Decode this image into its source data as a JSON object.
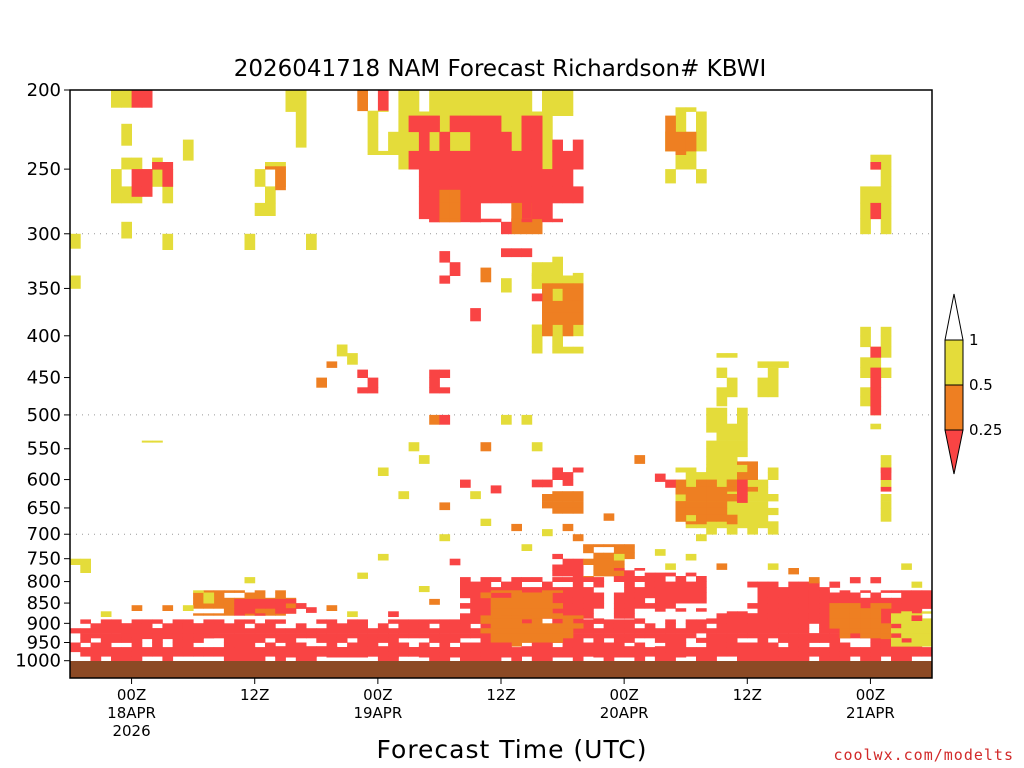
{
  "chart_data": {
    "type": "heatmap",
    "title": "2026041718 NAM Forecast Richardson# KBWI",
    "xlabel": "Forecast Time (UTC)",
    "credit": "coolwx.com/modelts",
    "y_axis": {
      "scale": "pressure (log)",
      "ticks": [
        "200",
        "250",
        "300",
        "350",
        "400",
        "450",
        "500",
        "550",
        "600",
        "650",
        "700",
        "750",
        "800",
        "850",
        "900",
        "950",
        "1000"
      ],
      "gridlines": [
        "300",
        "500",
        "700"
      ]
    },
    "x_axis": {
      "range": [
        "2026-04-17 18Z",
        "2026-04-21 06Z"
      ],
      "ticks": [
        {
          "time": "2026-04-18 00Z",
          "lines": [
            "00Z",
            "18APR",
            "2026"
          ]
        },
        {
          "time": "2026-04-18 12Z",
          "lines": [
            "12Z"
          ]
        },
        {
          "time": "2026-04-19 00Z",
          "lines": [
            "00Z",
            "19APR"
          ]
        },
        {
          "time": "2026-04-19 12Z",
          "lines": [
            "12Z"
          ]
        },
        {
          "time": "2026-04-20 00Z",
          "lines": [
            "00Z",
            "20APR"
          ]
        },
        {
          "time": "2026-04-20 12Z",
          "lines": [
            "12Z"
          ]
        },
        {
          "time": "2026-04-21 00Z",
          "lines": [
            "00Z",
            "21APR"
          ]
        }
      ]
    },
    "legend": {
      "placement": "right",
      "labels": [
        "1",
        "0.5",
        "0.25"
      ],
      "bins": [
        {
          "range": "0.5-1",
          "color": "#e4dc3a"
        },
        {
          "range": "0.25-0.5",
          "color": "#ee7f22"
        },
        {
          "range": "<0.25",
          "color": "#f94444"
        }
      ]
    },
    "colors": {
      "low": "#f94444",
      "mid": "#ee7f22",
      "high": "#e4dc3a",
      "ground": "#8c4a25"
    },
    "patches": [
      {
        "t0": 4,
        "t1": 8,
        "p0": 200,
        "p1": 210,
        "c": "high"
      },
      {
        "t0": 6,
        "t1": 8,
        "p0": 200,
        "p1": 210,
        "c": "low"
      },
      {
        "t0": 4,
        "t1": 10,
        "p0": 242,
        "p1": 275,
        "c": "high"
      },
      {
        "t0": 6,
        "t1": 10,
        "p0": 245,
        "p1": 270,
        "c": "low"
      },
      {
        "t0": 21,
        "t1": 23,
        "p0": 200,
        "p1": 235,
        "c": "high"
      },
      {
        "t0": 18,
        "t1": 21,
        "p0": 245,
        "p1": 285,
        "c": "high"
      },
      {
        "t0": 19,
        "t1": 21,
        "p0": 248,
        "p1": 265,
        "c": "mid"
      },
      {
        "t0": 28,
        "t1": 30,
        "p0": 200,
        "p1": 212,
        "c": "mid"
      },
      {
        "t0": 30,
        "t1": 31,
        "p0": 200,
        "p1": 212,
        "c": "low"
      },
      {
        "t0": 29,
        "t1": 32,
        "p0": 212,
        "p1": 240,
        "c": "high"
      },
      {
        "t0": 32,
        "t1": 47,
        "p0": 200,
        "p1": 250,
        "c": "high"
      },
      {
        "t0": 33,
        "t1": 46,
        "p0": 215,
        "p1": 290,
        "c": "low"
      },
      {
        "t0": 35,
        "t1": 40,
        "p0": 250,
        "p1": 290,
        "c": "low"
      },
      {
        "t0": 36,
        "t1": 38,
        "p0": 265,
        "p1": 290,
        "c": "mid"
      },
      {
        "t0": 43,
        "t1": 46,
        "p0": 275,
        "p1": 300,
        "c": "mid"
      },
      {
        "t0": 42,
        "t1": 45,
        "p0": 290,
        "p1": 320,
        "c": "low"
      },
      {
        "t0": 36,
        "t1": 38,
        "p0": 315,
        "p1": 345,
        "c": "low"
      },
      {
        "t0": 46,
        "t1": 49,
        "p0": 200,
        "p1": 215,
        "c": "high"
      },
      {
        "t0": 47,
        "t1": 49,
        "p0": 200,
        "p1": 210,
        "c": "mid"
      },
      {
        "t0": 44,
        "t1": 50,
        "p0": 230,
        "p1": 290,
        "c": "low"
      },
      {
        "t0": 45,
        "t1": 48,
        "p0": 320,
        "p1": 350,
        "c": "high"
      },
      {
        "t0": 45,
        "t1": 50,
        "p0": 335,
        "p1": 420,
        "c": "high"
      },
      {
        "t0": 46,
        "t1": 50,
        "p0": 345,
        "p1": 400,
        "c": "mid"
      },
      {
        "t0": 45,
        "t1": 46,
        "p0": 355,
        "p1": 380,
        "c": "low"
      },
      {
        "t0": 58,
        "t1": 62,
        "p0": 210,
        "p1": 260,
        "c": "high"
      },
      {
        "t0": 58,
        "t1": 61,
        "p0": 215,
        "p1": 240,
        "c": "mid"
      },
      {
        "t0": 77,
        "t1": 80,
        "p0": 240,
        "p1": 300,
        "c": "high"
      },
      {
        "t0": 78,
        "t1": 79,
        "p0": 245,
        "p1": 290,
        "c": "low"
      },
      {
        "t0": 77,
        "t1": 80,
        "p0": 390,
        "p1": 520,
        "c": "high"
      },
      {
        "t0": 78,
        "t1": 79,
        "p0": 400,
        "p1": 500,
        "c": "low"
      },
      {
        "t0": 79,
        "t1": 80,
        "p0": 560,
        "p1": 680,
        "c": "high"
      },
      {
        "t0": 79,
        "t1": 80,
        "p0": 580,
        "p1": 620,
        "c": "low"
      },
      {
        "t0": 63,
        "t1": 65,
        "p0": 420,
        "p1": 490,
        "c": "high"
      },
      {
        "t0": 62,
        "t1": 66,
        "p0": 490,
        "p1": 600,
        "c": "high"
      },
      {
        "t0": 59,
        "t1": 69,
        "p0": 580,
        "p1": 700,
        "c": "high"
      },
      {
        "t0": 59,
        "t1": 65,
        "p0": 600,
        "p1": 680,
        "c": "mid"
      },
      {
        "t0": 64,
        "t1": 67,
        "p0": 570,
        "p1": 620,
        "c": "mid"
      },
      {
        "t0": 65,
        "t1": 66,
        "p0": 600,
        "p1": 640,
        "c": "low"
      },
      {
        "t0": 67,
        "t1": 70,
        "p0": 430,
        "p1": 480,
        "c": "high"
      },
      {
        "t0": 24,
        "t1": 26,
        "p0": 430,
        "p1": 480,
        "c": "mid"
      },
      {
        "t0": 28,
        "t1": 30,
        "p0": 440,
        "p1": 470,
        "c": "low"
      },
      {
        "t0": 35,
        "t1": 37,
        "p0": 440,
        "p1": 470,
        "c": "low"
      },
      {
        "t0": 45,
        "t1": 47,
        "p0": 600,
        "p1": 620,
        "c": "low"
      },
      {
        "t0": 46,
        "t1": 50,
        "p0": 620,
        "p1": 660,
        "c": "mid"
      },
      {
        "t0": 47,
        "t1": 50,
        "p0": 580,
        "p1": 610,
        "c": "low"
      },
      {
        "t0": 47,
        "t1": 50,
        "p0": 740,
        "p1": 800,
        "c": "low"
      },
      {
        "t0": 50,
        "t1": 55,
        "p0": 720,
        "p1": 800,
        "c": "mid"
      },
      {
        "t0": 53,
        "t1": 56,
        "p0": 770,
        "p1": 900,
        "c": "low"
      },
      {
        "t0": 56,
        "t1": 62,
        "p0": 780,
        "p1": 870,
        "c": "low"
      },
      {
        "t0": 38,
        "t1": 52,
        "p0": 790,
        "p1": 900,
        "c": "low"
      },
      {
        "t0": 40,
        "t1": 48,
        "p0": 820,
        "p1": 900,
        "c": "mid"
      },
      {
        "t0": 12,
        "t1": 22,
        "p0": 820,
        "p1": 880,
        "c": "mid"
      },
      {
        "t0": 12,
        "t1": 14,
        "p0": 820,
        "p1": 850,
        "c": "high"
      },
      {
        "t0": 16,
        "t1": 22,
        "p0": 840,
        "p1": 880,
        "c": "low"
      },
      {
        "t0": 0,
        "t1": 62,
        "p0": 890,
        "p1": 950,
        "c": "low"
      },
      {
        "t0": 5,
        "t1": 14,
        "p0": 900,
        "p1": 940,
        "c": "low"
      },
      {
        "t0": 40,
        "t1": 50,
        "p0": 880,
        "p1": 960,
        "c": "mid"
      },
      {
        "t0": 0,
        "t1": 84,
        "p0": 950,
        "p1": 1000,
        "c": "low"
      },
      {
        "t0": 20,
        "t1": 60,
        "p0": 960,
        "p1": 990,
        "c": "low"
      },
      {
        "t0": 62,
        "t1": 72,
        "p0": 870,
        "p1": 960,
        "c": "low"
      },
      {
        "t0": 66,
        "t1": 74,
        "p0": 800,
        "p1": 900,
        "c": "low"
      },
      {
        "t0": 72,
        "t1": 84,
        "p0": 820,
        "p1": 950,
        "c": "low"
      },
      {
        "t0": 74,
        "t1": 80,
        "p0": 850,
        "p1": 940,
        "c": "mid"
      },
      {
        "t0": 80,
        "t1": 84,
        "p0": 870,
        "p1": 960,
        "c": "high"
      },
      {
        "t0": 0,
        "t1": 1,
        "p0": 295,
        "p1": 350,
        "c": "high"
      },
      {
        "t0": 0,
        "t1": 1,
        "p0": 295,
        "p1": 310,
        "c": "mid"
      },
      {
        "t0": 0,
        "t1": 2,
        "p0": 750,
        "p1": 780,
        "c": "high"
      },
      {
        "t0": 7,
        "t1": 9,
        "p0": 520,
        "p1": 540,
        "c": "high"
      }
    ],
    "speckles": [
      {
        "t": 3,
        "p": 870,
        "c": "high"
      },
      {
        "t": 6,
        "p": 855,
        "c": "mid"
      },
      {
        "t": 9,
        "p": 855,
        "c": "mid"
      },
      {
        "t": 11,
        "p": 855,
        "c": "high"
      },
      {
        "t": 17,
        "p": 790,
        "c": "high"
      },
      {
        "t": 23,
        "p": 860,
        "c": "low"
      },
      {
        "t": 25,
        "p": 855,
        "c": "mid"
      },
      {
        "t": 27,
        "p": 870,
        "c": "high"
      },
      {
        "t": 28,
        "p": 780,
        "c": "high"
      },
      {
        "t": 31,
        "p": 870,
        "c": "low"
      },
      {
        "t": 34,
        "p": 810,
        "c": "high"
      },
      {
        "t": 35,
        "p": 840,
        "c": "mid"
      },
      {
        "t": 33,
        "p": 540,
        "c": "high"
      },
      {
        "t": 34,
        "p": 560,
        "c": "high"
      },
      {
        "t": 35,
        "p": 500,
        "c": "mid"
      },
      {
        "t": 36,
        "p": 700,
        "c": "high"
      },
      {
        "t": 36,
        "p": 640,
        "c": "mid"
      },
      {
        "t": 37,
        "p": 750,
        "c": "low"
      },
      {
        "t": 38,
        "p": 600,
        "c": "low"
      },
      {
        "t": 39,
        "p": 620,
        "c": "high"
      },
      {
        "t": 40,
        "p": 670,
        "c": "high"
      },
      {
        "t": 41,
        "p": 610,
        "c": "low"
      },
      {
        "t": 42,
        "p": 500,
        "c": "high"
      },
      {
        "t": 43,
        "p": 680,
        "c": "mid"
      },
      {
        "t": 44,
        "p": 720,
        "c": "high"
      },
      {
        "t": 44,
        "p": 500,
        "c": "high"
      },
      {
        "t": 45,
        "p": 540,
        "c": "high"
      },
      {
        "t": 46,
        "p": 690,
        "c": "high"
      },
      {
        "t": 48,
        "p": 680,
        "c": "mid"
      },
      {
        "t": 49,
        "p": 700,
        "c": "mid"
      },
      {
        "t": 52,
        "p": 660,
        "c": "mid"
      },
      {
        "t": 53,
        "p": 740,
        "c": "high"
      },
      {
        "t": 55,
        "p": 560,
        "c": "mid"
      },
      {
        "t": 57,
        "p": 590,
        "c": "low"
      },
      {
        "t": 58,
        "p": 760,
        "c": "high"
      },
      {
        "t": 60,
        "p": 740,
        "c": "high"
      },
      {
        "t": 61,
        "p": 700,
        "c": "high"
      },
      {
        "t": 63,
        "p": 760,
        "c": "mid"
      },
      {
        "t": 68,
        "p": 760,
        "c": "high"
      },
      {
        "t": 70,
        "p": 770,
        "c": "mid"
      },
      {
        "t": 72,
        "p": 790,
        "c": "mid"
      },
      {
        "t": 74,
        "p": 800,
        "c": "low"
      },
      {
        "t": 76,
        "p": 790,
        "c": "low"
      },
      {
        "t": 78,
        "p": 790,
        "c": "low"
      },
      {
        "t": 81,
        "p": 760,
        "c": "high"
      },
      {
        "t": 82,
        "p": 800,
        "c": "high"
      },
      {
        "t": 83,
        "p": 850,
        "c": "low"
      },
      {
        "t": 82,
        "p": 880,
        "c": "low"
      },
      {
        "t": 30,
        "p": 580,
        "c": "high"
      },
      {
        "t": 32,
        "p": 620,
        "c": "high"
      },
      {
        "t": 27,
        "p": 420,
        "c": "high"
      },
      {
        "t": 26,
        "p": 410,
        "c": "high"
      },
      {
        "t": 39,
        "p": 370,
        "c": "low"
      },
      {
        "t": 40,
        "p": 330,
        "c": "mid"
      },
      {
        "t": 42,
        "p": 340,
        "c": "high"
      },
      {
        "t": 23,
        "p": 300,
        "c": "high"
      },
      {
        "t": 9,
        "p": 300,
        "c": "high"
      },
      {
        "t": 17,
        "p": 300,
        "c": "high"
      },
      {
        "t": 5,
        "p": 290,
        "c": "high"
      },
      {
        "t": 11,
        "p": 230,
        "c": "high"
      },
      {
        "t": 5,
        "p": 220,
        "c": "high"
      },
      {
        "t": 36,
        "p": 500,
        "c": "low"
      },
      {
        "t": 40,
        "p": 540,
        "c": "mid"
      },
      {
        "t": 58,
        "p": 600,
        "c": "low"
      },
      {
        "t": 57,
        "p": 730,
        "c": "high"
      },
      {
        "t": 22,
        "p": 850,
        "c": "low"
      },
      {
        "t": 30,
        "p": 740,
        "c": "high"
      }
    ]
  }
}
